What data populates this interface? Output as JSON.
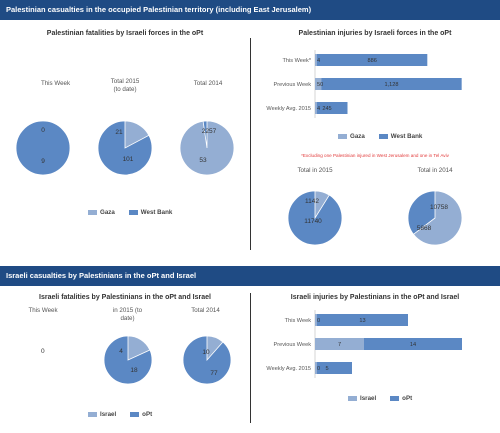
{
  "section1": {
    "title": "Palestinian casualties in the occupied Palestinian territory (including East Jerusalem)"
  },
  "section2": {
    "title": "Israeli casualties by Palestinians in the oPt and Israel"
  },
  "colors": {
    "gaza": "#94aed3",
    "westbank": "#5b88c4",
    "header": "#1f4b84",
    "note": "#e23b3b"
  },
  "legends": {
    "pal": [
      "Gaza",
      "West Bank"
    ],
    "isr": [
      "Israel",
      "oPt"
    ]
  },
  "pal_note": "*Excluding one Palestinian injured in West Jerusalem and one in Tel Aviv",
  "chart_data": [
    {
      "type": "pie",
      "title": "Palestinian fatalities by Israeli forces in the oPt",
      "series_names": [
        "Gaza",
        "West Bank"
      ],
      "pies": [
        {
          "label": "This Week",
          "values": [
            0,
            9
          ]
        },
        {
          "label": "Total 2015\n(to date)",
          "values": [
            21,
            101
          ]
        },
        {
          "label": "Total 2014",
          "values": [
            2257,
            53
          ]
        }
      ]
    },
    {
      "type": "bar",
      "orientation": "horizontal",
      "stacked": true,
      "title": "Palestinian injuries by Israeli forces in the oPt",
      "categories": [
        "This Week*",
        "Previous Week",
        "Weekly Avg. 2015"
      ],
      "series": [
        {
          "name": "Gaza",
          "values": [
            4,
            50,
            4
          ]
        },
        {
          "name": "West Bank",
          "values": [
            886,
            1128,
            245
          ]
        }
      ],
      "value_labels": [
        [
          "4",
          "886"
        ],
        [
          "50",
          "1,128"
        ],
        [
          "4",
          "245"
        ]
      ]
    },
    {
      "type": "pie",
      "title": "",
      "series_names": [
        "Gaza",
        "West Bank"
      ],
      "pies": [
        {
          "label": "Total in 2015",
          "values": [
            1142,
            11740
          ]
        },
        {
          "label": "Total in 2014",
          "values": [
            10758,
            5868
          ]
        }
      ]
    },
    {
      "type": "pie",
      "title": "Israeli fatalities by Palestinians in the oPt and Israel",
      "series_names": [
        "Israel",
        "oPt"
      ],
      "pies": [
        {
          "label": "This Week",
          "values": [
            0,
            0
          ],
          "value_text": "0"
        },
        {
          "label": "in 2015 (to\ndate)",
          "values": [
            4,
            18
          ]
        },
        {
          "label": "Total 2014",
          "values": [
            10,
            77
          ]
        }
      ]
    },
    {
      "type": "bar",
      "orientation": "horizontal",
      "stacked": true,
      "title": "Israeli injuries by Palestinians in the oPt and Israel",
      "categories": [
        "This Week",
        "Previous Week",
        "Weekly Avg. 2015"
      ],
      "series": [
        {
          "name": "Israel",
          "values": [
            0,
            7,
            0
          ]
        },
        {
          "name": "oPt",
          "values": [
            13,
            14,
            5
          ]
        }
      ],
      "value_labels": [
        [
          "0",
          "13"
        ],
        [
          "7",
          "14"
        ],
        [
          "0",
          "5"
        ]
      ]
    }
  ]
}
